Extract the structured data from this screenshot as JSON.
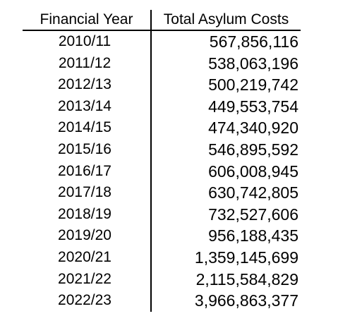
{
  "table": {
    "headers": {
      "year": "Financial Year",
      "cost": "Total Asylum Costs"
    },
    "rows": [
      {
        "year": "2010/11",
        "cost": "567,856,116"
      },
      {
        "year": "2011/12",
        "cost": "538,063,196"
      },
      {
        "year": "2012/13",
        "cost": "500,219,742"
      },
      {
        "year": "2013/14",
        "cost": "449,553,754"
      },
      {
        "year": "2014/15",
        "cost": "474,340,920"
      },
      {
        "year": "2015/16",
        "cost": "546,895,592"
      },
      {
        "year": "2016/17",
        "cost": "606,008,945"
      },
      {
        "year": "2017/18",
        "cost": "630,742,805"
      },
      {
        "year": "2018/19",
        "cost": "732,527,606"
      },
      {
        "year": "2019/20",
        "cost": "956,188,435"
      },
      {
        "year": "2020/21",
        "cost": "1,359,145,699"
      },
      {
        "year": "2021/22",
        "cost": "2,115,584,829"
      },
      {
        "year": "2022/23",
        "cost": "3,966,863,377"
      }
    ]
  }
}
